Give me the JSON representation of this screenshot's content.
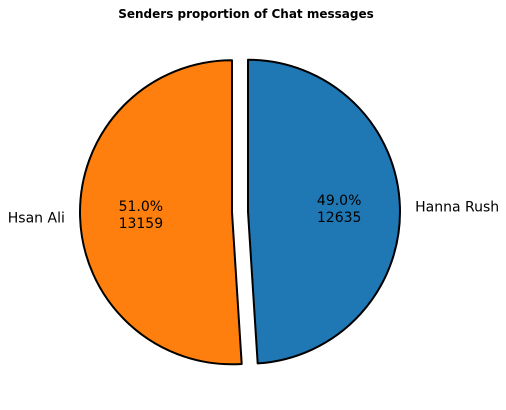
{
  "chart_data": {
    "type": "pie",
    "title": "Senders proportion of Chat messages",
    "slices": [
      {
        "label": "Hanna Rush",
        "value": 12635,
        "percent": "49.0%",
        "count": "12635",
        "color": "#1f77b4"
      },
      {
        "label": "Hsan Ali",
        "value": 13159,
        "percent": "51.0%",
        "count": "13159",
        "color": "#ff7f0e"
      }
    ],
    "start_angle_deg": 90,
    "direction": "clockwise",
    "exploded": true,
    "edge_color": "#000000"
  }
}
